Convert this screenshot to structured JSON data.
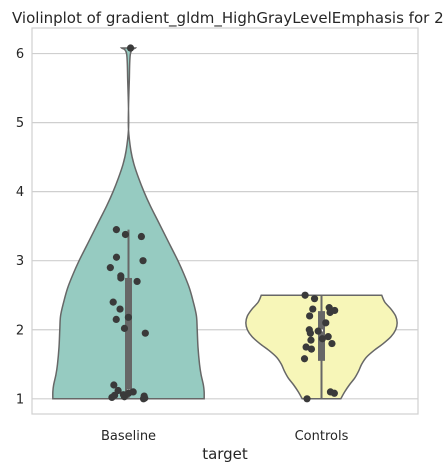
{
  "chart_data": {
    "type": "violin",
    "title": "Violinplot of gradient_gldm_HighGrayLevelEmphasis for 2",
    "xlabel": "target",
    "ylabel": "",
    "categories": [
      "Baseline",
      "Controls"
    ],
    "ylim": [
      0.78,
      6.37
    ],
    "yticks": [
      1,
      2,
      3,
      4,
      5,
      6
    ],
    "grid": "horizontal",
    "colors": {
      "Baseline": "#96cbc1",
      "Controls": "#f7f6b8",
      "outline": "#676767",
      "points": "#3a3a3a",
      "grid": "#cfcfcf",
      "frame": "#d0d0d0"
    },
    "violins": [
      {
        "category": "Baseline",
        "min": 1.0,
        "max": 6.08,
        "q1": 1.08,
        "median": 1.12,
        "q3": 2.75,
        "profile": [
          [
            1.0,
            0.98
          ],
          [
            1.1,
            0.98
          ],
          [
            1.2,
            0.97
          ],
          [
            1.35,
            0.94
          ],
          [
            1.5,
            0.92
          ],
          [
            1.75,
            0.9
          ],
          [
            2.0,
            0.89
          ],
          [
            2.2,
            0.88
          ],
          [
            2.4,
            0.84
          ],
          [
            2.6,
            0.79
          ],
          [
            2.8,
            0.72
          ],
          [
            3.0,
            0.64
          ],
          [
            3.2,
            0.55
          ],
          [
            3.4,
            0.46
          ],
          [
            3.6,
            0.37
          ],
          [
            3.8,
            0.28
          ],
          [
            4.0,
            0.2
          ],
          [
            4.2,
            0.13
          ],
          [
            4.4,
            0.07
          ],
          [
            4.6,
            0.03
          ],
          [
            4.9,
            0.0
          ],
          [
            5.2,
            0.0
          ],
          [
            5.6,
            0.01
          ],
          [
            6.0,
            0.025
          ],
          [
            6.08,
            0.09
          ]
        ],
        "points": [
          1.0,
          1.01,
          1.02,
          1.03,
          1.04,
          1.05,
          1.06,
          1.08,
          1.1,
          1.12,
          1.2,
          1.95,
          2.02,
          2.15,
          2.18,
          2.3,
          2.4,
          2.7,
          2.75,
          2.78,
          2.9,
          3.0,
          3.05,
          3.35,
          3.38,
          3.45,
          6.08
        ]
      },
      {
        "category": "Controls",
        "min": 1.0,
        "max": 2.5,
        "q1": 1.55,
        "median": 1.99,
        "q3": 2.27,
        "profile": [
          [
            1.0,
            0.25
          ],
          [
            1.1,
            0.3
          ],
          [
            1.2,
            0.36
          ],
          [
            1.3,
            0.43
          ],
          [
            1.4,
            0.48
          ],
          [
            1.5,
            0.52
          ],
          [
            1.6,
            0.58
          ],
          [
            1.7,
            0.68
          ],
          [
            1.8,
            0.8
          ],
          [
            1.9,
            0.9
          ],
          [
            2.0,
            0.96
          ],
          [
            2.1,
            0.98
          ],
          [
            2.2,
            0.96
          ],
          [
            2.3,
            0.9
          ],
          [
            2.4,
            0.82
          ],
          [
            2.5,
            0.78
          ]
        ],
        "points": [
          1.0,
          1.08,
          1.1,
          1.58,
          1.72,
          1.75,
          1.8,
          1.85,
          1.87,
          1.9,
          1.95,
          1.98,
          2.0,
          2.1,
          2.2,
          2.25,
          2.28,
          2.3,
          2.32,
          2.45,
          2.5
        ]
      }
    ]
  }
}
